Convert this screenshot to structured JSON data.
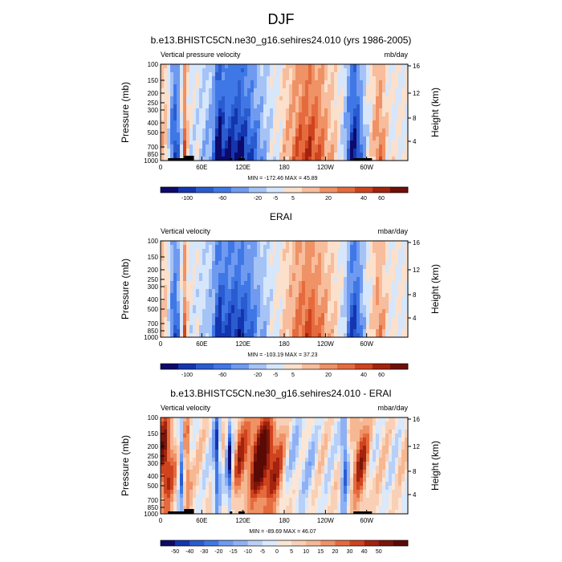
{
  "figure": {
    "title": "DJF"
  },
  "colors": {
    "palette13": [
      "#0d0a6b",
      "#1435b0",
      "#2a5ccf",
      "#3f78e6",
      "#6f9af0",
      "#a6c3f6",
      "#d6e6fb",
      "#fbe0cc",
      "#f7bd9c",
      "#ef9266",
      "#e56b3e",
      "#cf431f",
      "#a3230e",
      "#6e0f08"
    ],
    "palette16": [
      "#0d0a6b",
      "#1435b0",
      "#2a5ccf",
      "#3f78e6",
      "#6f9af0",
      "#8fb1f3",
      "#b8d0f8",
      "#dae9fc",
      "#fbe6d6",
      "#f9d0b6",
      "#f6b793",
      "#ef9266",
      "#e56b3e",
      "#cf431f",
      "#a3230e",
      "#7a1509",
      "#5a0a05"
    ],
    "land": "#000000"
  },
  "chart_data": [
    {
      "type": "heatmap",
      "title": "b.e13.BHISTC5CN.ne30_g16.sehires24.010 (yrs 1986-2005)",
      "left_label": "Vertical pressure velocity",
      "right_label": "mb/day",
      "ylabel": "Pressure (mb)",
      "ylabel_right": "Height (km)",
      "y_ticks": [
        "100",
        "150",
        "200",
        "250",
        "300",
        "400",
        "500",
        "700",
        "850",
        "1000"
      ],
      "y_ticks_right": [
        "16",
        "12",
        "8",
        "4"
      ],
      "x_ticks": [
        "0",
        "60E",
        "120E",
        "180",
        "120W",
        "60W"
      ],
      "stats": "MIN = -172.46  MAX = 45.89",
      "colorbar_labels": [
        "-100",
        "-60",
        "-20",
        "-5",
        "5",
        "20",
        "40",
        "60"
      ],
      "scale": "signed"
    },
    {
      "type": "heatmap",
      "title": "ERAI",
      "left_label": "Vertical velocity",
      "right_label": "mbar/day",
      "ylabel": "Pressure (mb)",
      "ylabel_right": "Height (km)",
      "y_ticks": [
        "100",
        "150",
        "200",
        "250",
        "300",
        "400",
        "500",
        "700",
        "850",
        "1000"
      ],
      "y_ticks_right": [
        "16",
        "12",
        "8",
        "4"
      ],
      "x_ticks": [
        "0",
        "60E",
        "120E",
        "180",
        "120W",
        "60W"
      ],
      "stats": "MIN = -103.19  MAX = 37.23",
      "colorbar_labels": [
        "-100",
        "-60",
        "-20",
        "-5",
        "5",
        "20",
        "40",
        "60"
      ],
      "scale": "signed"
    },
    {
      "type": "heatmap",
      "title": "b.e13.BHISTC5CN.ne30_g16.sehires24.010 - ERAI",
      "left_label": "Vertical velocity",
      "right_label": "mbar/day",
      "ylabel": "Pressure (mb)",
      "ylabel_right": "Height (km)",
      "y_ticks": [
        "100",
        "150",
        "200",
        "250",
        "300",
        "400",
        "500",
        "700",
        "850",
        "1000"
      ],
      "y_ticks_right": [
        "16",
        "12",
        "8",
        "4"
      ],
      "x_ticks": [
        "0",
        "60E",
        "120E",
        "180",
        "120W",
        "60W"
      ],
      "stats": "MIN = -89.69  MAX = 46.07",
      "colorbar_labels": [
        "-50",
        "-40",
        "-30",
        "-20",
        "-15",
        "-10",
        "-5",
        "0",
        "5",
        "10",
        "15",
        "20",
        "30",
        "40",
        "50"
      ],
      "scale": "diff"
    }
  ]
}
